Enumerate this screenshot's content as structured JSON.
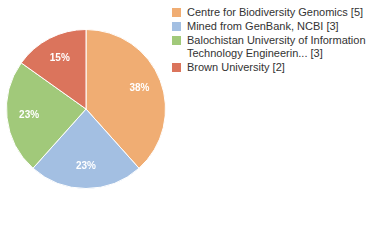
{
  "chart_data": {
    "type": "pie",
    "categories": [
      "Centre for Biodiversity Genomics [5]",
      "Mined from GenBank, NCBI [3]",
      "Balochistan University of Information Technology Engineerin... [3]",
      "Brown University [2]"
    ],
    "values": [
      38,
      23,
      23,
      15
    ],
    "value_labels": [
      "38%",
      "23%",
      "23%",
      "15%"
    ],
    "colors": [
      "#f0ad73",
      "#a3bfe2",
      "#a1c97a",
      "#db745c"
    ],
    "data_labels": true,
    "legend": "right"
  }
}
